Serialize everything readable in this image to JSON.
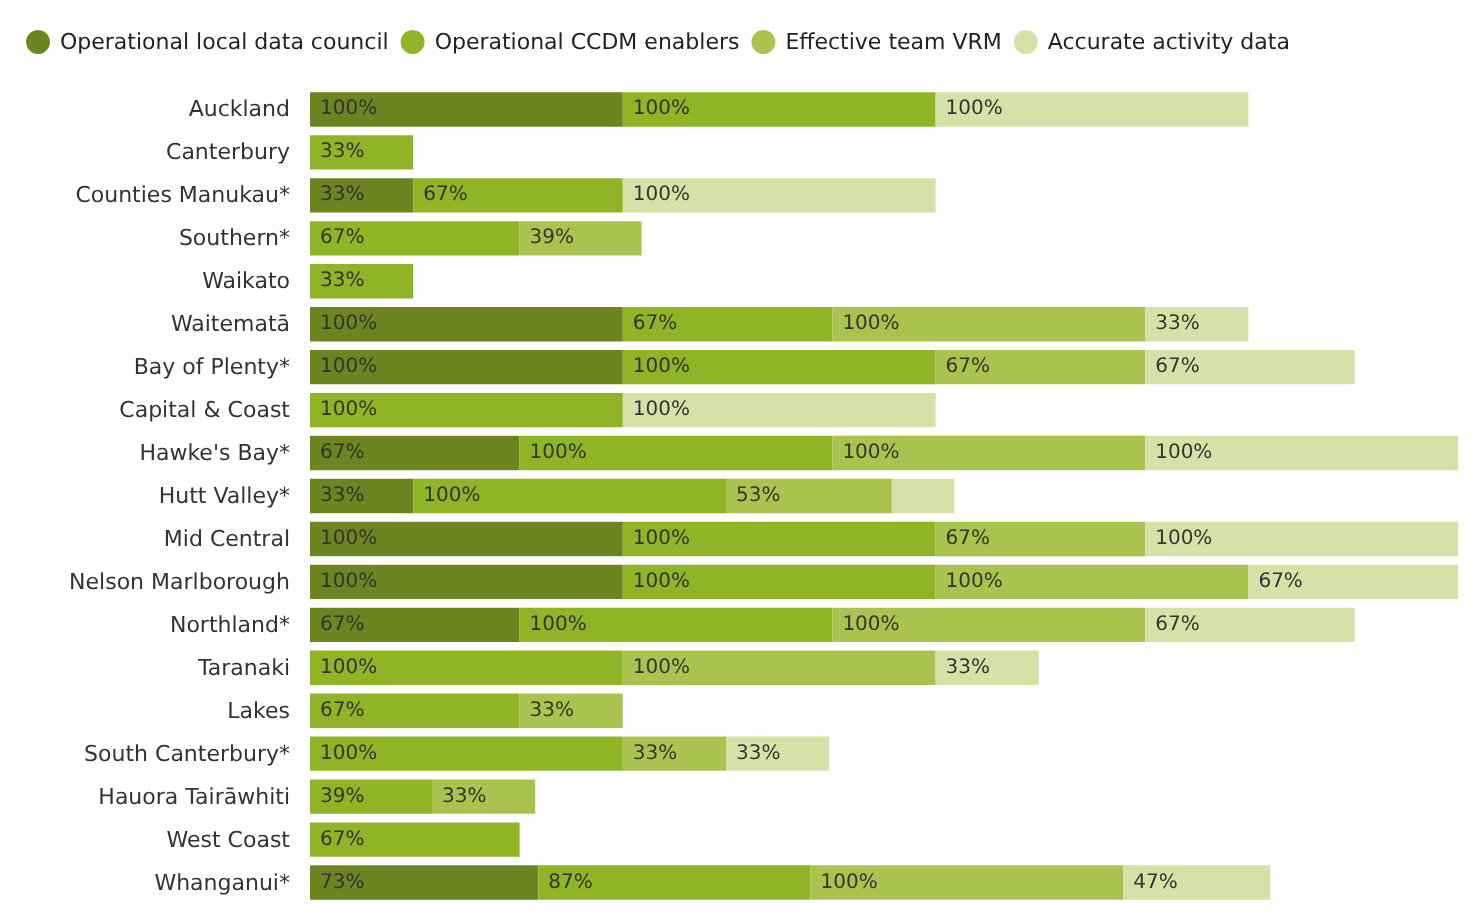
{
  "chart_data": {
    "type": "bar",
    "orientation": "horizontal",
    "stacked": true,
    "legend": "top left",
    "categories": [
      "Auckland",
      "Canterbury",
      "Counties Manukau*",
      "Southern*",
      "Waikato",
      "Waitematā",
      "Bay of Plenty*",
      "Capital & Coast",
      "Hawke's Bay*",
      "Hutt Valley*",
      "Mid Central",
      "Nelson Marlborough",
      "Northland*",
      "Taranaki",
      "Lakes",
      "South Canterbury*",
      "Hauora Tairāwhiti",
      "West Coast",
      "Whanganui*"
    ],
    "series": [
      {
        "name": "Operational local data council",
        "color": "#6b8620",
        "values": [
          100,
          null,
          33,
          null,
          null,
          100,
          100,
          null,
          67,
          33,
          100,
          100,
          67,
          null,
          null,
          null,
          null,
          null,
          73
        ],
        "value_labels": [
          "100%",
          null,
          "33%",
          null,
          null,
          "100%",
          "100%",
          null,
          "67%",
          "33%",
          "100%",
          "100%",
          "67%",
          null,
          null,
          null,
          null,
          null,
          "73%"
        ]
      },
      {
        "name": "Operational CCDM enablers",
        "color": "#8fb526",
        "values": [
          100,
          33,
          67,
          67,
          33,
          67,
          100,
          100,
          100,
          100,
          100,
          100,
          100,
          100,
          67,
          100,
          39,
          67,
          87
        ],
        "value_labels": [
          "100%",
          "33%",
          "67%",
          "67%",
          "33%",
          "67%",
          "100%",
          "100%",
          "100%",
          "100%",
          "100%",
          "100%",
          "100%",
          "100%",
          "67%",
          "100%",
          "39%",
          "67%",
          "87%"
        ]
      },
      {
        "name": "Effective team VRM",
        "color": "#a8c44e",
        "values": [
          null,
          null,
          null,
          39,
          null,
          100,
          67,
          null,
          100,
          53,
          67,
          100,
          100,
          100,
          33,
          33,
          33,
          null,
          100
        ],
        "value_labels": [
          null,
          null,
          null,
          "39%",
          null,
          "100%",
          "67%",
          null,
          "100%",
          "53%",
          "67%",
          "100%",
          "100%",
          "100%",
          "33%",
          "33%",
          "33%",
          null,
          "100%"
        ]
      },
      {
        "name": "Accurate activity data",
        "color": "#d4e2a8",
        "values": [
          100,
          null,
          100,
          null,
          null,
          33,
          67,
          100,
          100,
          20,
          100,
          67,
          67,
          33,
          null,
          33,
          null,
          null,
          47
        ],
        "value_labels": [
          "100%",
          null,
          "100%",
          null,
          null,
          "33%",
          "67%",
          "100%",
          "100%",
          null,
          "100%",
          "67%",
          "67%",
          "33%",
          null,
          "33%",
          null,
          null,
          "47%"
        ]
      }
    ]
  }
}
